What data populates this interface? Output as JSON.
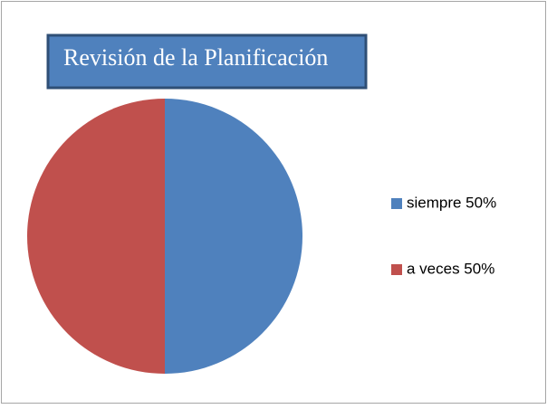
{
  "chart_data": {
    "type": "pie",
    "title": "Revisión de la Planificación",
    "categories": [
      "siempre 50%",
      "a veces 50%"
    ],
    "values": [
      50,
      50
    ],
    "colors": [
      "#4f81bd",
      "#c0504d"
    ],
    "legend": "right"
  }
}
